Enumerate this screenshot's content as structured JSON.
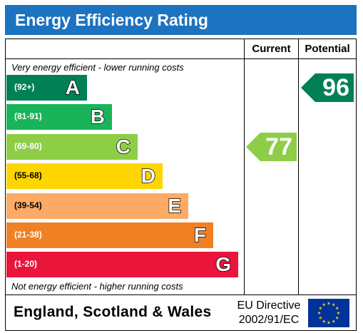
{
  "header": {
    "title": "Energy Efficiency Rating"
  },
  "columns": {
    "current": "Current",
    "potential": "Potential"
  },
  "notes": {
    "top": "Very energy efficient - lower running costs",
    "bottom": "Not energy efficient - higher running costs"
  },
  "chart_data": {
    "type": "bar",
    "title": "Energy Efficiency Rating",
    "bands": [
      {
        "letter": "A",
        "range": "(92+)",
        "color": "#008054"
      },
      {
        "letter": "B",
        "range": "(81-91)",
        "color": "#19b459"
      },
      {
        "letter": "C",
        "range": "(69-80)",
        "color": "#8dce46"
      },
      {
        "letter": "D",
        "range": "(55-68)",
        "color": "#ffd500"
      },
      {
        "letter": "E",
        "range": "(39-54)",
        "color": "#fcaa65"
      },
      {
        "letter": "F",
        "range": "(21-38)",
        "color": "#ef8023"
      },
      {
        "letter": "G",
        "range": "(1-20)",
        "color": "#e9153b"
      }
    ],
    "current": {
      "value": 77,
      "label": "77",
      "band": "C",
      "color": "#8dce46"
    },
    "potential": {
      "value": 96,
      "label": "96",
      "band": "A",
      "color": "#008054"
    }
  },
  "footer": {
    "region": "England, Scotland & Wales",
    "directive_line1": "EU Directive",
    "directive_line2": "2002/91/EC",
    "flag_icon": "eu-flag-icon",
    "flag_color": "#003399",
    "star_color": "#ffcc00"
  }
}
